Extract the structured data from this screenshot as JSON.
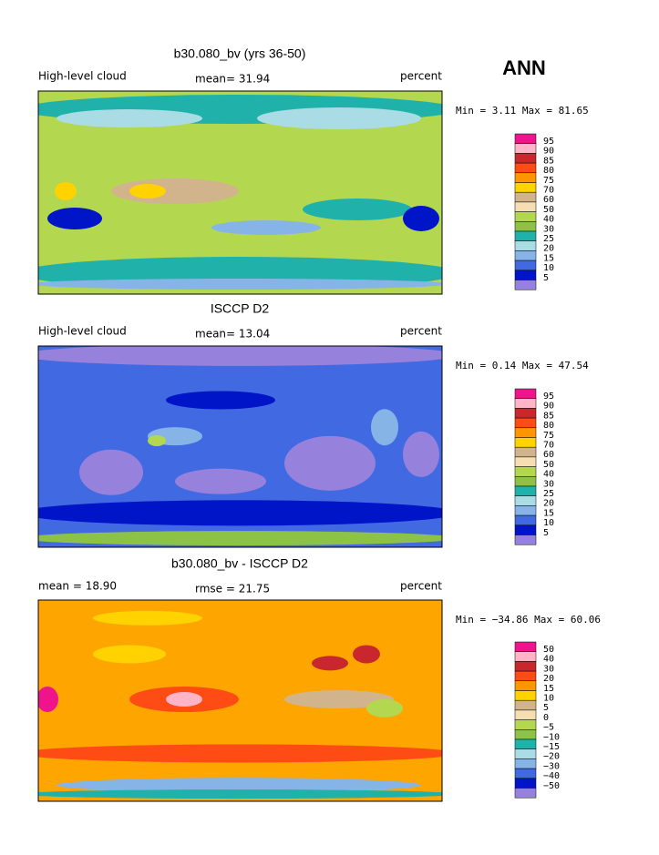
{
  "header": {
    "season": "ANN"
  },
  "panels": [
    {
      "title": "b30.080_bv (yrs 36-50)",
      "left": "High-level cloud",
      "center": "mean=  31.94",
      "right": "percent",
      "range": "Min =   3.11 Max =  81.65",
      "levels": [
        "95",
        "90",
        "85",
        "80",
        "75",
        "70",
        "60",
        "50",
        "40",
        "30",
        "25",
        "20",
        "15",
        "10",
        "5"
      ]
    },
    {
      "title": "ISCCP D2",
      "left": "High-level cloud",
      "center": "mean=  13.04",
      "right": "percent",
      "range": "Min =   0.14 Max =  47.54",
      "levels": [
        "95",
        "90",
        "85",
        "80",
        "75",
        "70",
        "60",
        "50",
        "40",
        "30",
        "25",
        "20",
        "15",
        "10",
        "5"
      ]
    },
    {
      "title": "b30.080_bv - ISCCP D2",
      "left": "mean =  18.90",
      "center": "rmse =  21.75",
      "right": "percent",
      "range": "Min = −34.86 Max =  60.06",
      "levels": [
        "50",
        "40",
        "30",
        "20",
        "15",
        "10",
        "5",
        "0",
        "−5",
        "−10",
        "−15",
        "−20",
        "−30",
        "−40",
        "−50"
      ]
    }
  ],
  "colorbar_colors": [
    "#f0148c",
    "#ffb4c8",
    "#c8282d",
    "#ff4b14",
    "#ff9600",
    "#ffd200",
    "#d2b48c",
    "#f5deb3",
    "#b4d750",
    "#8cc346",
    "#20b2aa",
    "#aadce6",
    "#87b4e6",
    "#4169e1",
    "#0014c8",
    "#9682dc"
  ]
}
